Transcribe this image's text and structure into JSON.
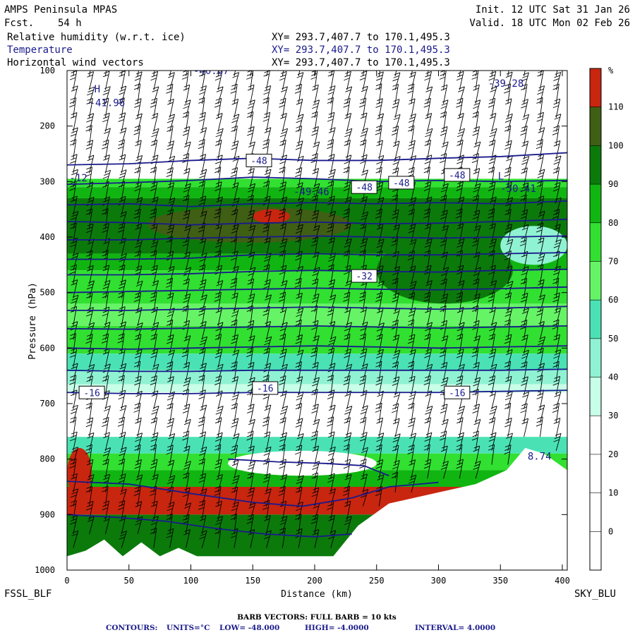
{
  "header": {
    "model": "AMPS Peninsula MPAS",
    "fcst_label": "Fcst.",
    "fcst_value": "54 h",
    "init": "Init. 12 UTC Sat 31 Jan 26",
    "valid": "Valid. 18 UTC Mon 02 Feb 26",
    "fields": [
      {
        "name": "Relative humidity (w.r.t. ice)",
        "xy": "XY= 293.7,407.7 to 170.1,495.3",
        "color": "#000000"
      },
      {
        "name": "Temperature",
        "xy": "XY= 293.7,407.7 to 170.1,495.3",
        "color": "#1a1a8c"
      },
      {
        "name": "Horizontal wind vectors",
        "xy": "XY= 293.7,407.7 to 170.1,495.3",
        "color": "#000000"
      }
    ]
  },
  "footer": {
    "left_station": "FSSL_BLF",
    "right_station": "SKY_BLU",
    "barb_note": "BARB VECTORS:  FULL BARB = 10 kts",
    "contours": {
      "label": "CONTOURS:",
      "units": "UNITS=°C",
      "low": "LOW= -48.000",
      "high": "HIGH= -4.0000",
      "interval": "INTERVAL=   4.0000"
    }
  },
  "chart_data": {
    "type": "heatmap",
    "title": "",
    "xlabel": "Distance (km)",
    "ylabel": "Pressure (hPa)",
    "xlim": [
      0,
      404
    ],
    "ylim": [
      1000,
      100
    ],
    "x_ticks": [
      0,
      50,
      100,
      150,
      200,
      250,
      300,
      350,
      400
    ],
    "y_ticks": [
      100,
      200,
      300,
      400,
      500,
      600,
      700,
      800,
      900,
      1000
    ],
    "colorbar": {
      "unit": "%",
      "levels": [
        0,
        10,
        20,
        30,
        40,
        50,
        60,
        70,
        80,
        90,
        100,
        110
      ],
      "colors": [
        "#ffffff",
        "#ffffff",
        "#ffffff",
        "#ffffff",
        "#c8ffe8",
        "#8ff2d2",
        "#4ae2b4",
        "#66f466",
        "#31e031",
        "#11b511",
        "#0b7a0b",
        "#3f5f14",
        "#c8260f"
      ]
    },
    "rh_bands": [
      {
        "p_top": 295,
        "p_bottom": 310,
        "rh": 70
      },
      {
        "p_top": 310,
        "p_bottom": 330,
        "rh": 80
      },
      {
        "p_top": 330,
        "p_bottom": 430,
        "rh": 90
      },
      {
        "p_top": 430,
        "p_bottom": 460,
        "rh": 80
      },
      {
        "p_top": 460,
        "p_bottom": 520,
        "rh": 70
      },
      {
        "p_top": 520,
        "p_bottom": 560,
        "rh": 60
      },
      {
        "p_top": 560,
        "p_bottom": 610,
        "rh": 70
      },
      {
        "p_top": 610,
        "p_bottom": 640,
        "rh": 50
      },
      {
        "p_top": 640,
        "p_bottom": 665,
        "rh": 40
      },
      {
        "p_top": 665,
        "p_bottom": 680,
        "rh": 30
      },
      {
        "p_top": 760,
        "p_bottom": 790,
        "rh": 50
      },
      {
        "p_top": 790,
        "p_bottom": 820,
        "rh": 70
      },
      {
        "p_top": 820,
        "p_bottom": 850,
        "rh": 80
      },
      {
        "p_top": 850,
        "p_bottom": 900,
        "rh": 110
      },
      {
        "p_top": 900,
        "p_bottom": 975,
        "rh": 90
      }
    ],
    "rh_patches": [
      {
        "x0": 65,
        "x1": 230,
        "p_top": 345,
        "p_bottom": 410,
        "rh": 100
      },
      {
        "x0": 150,
        "x1": 180,
        "p_top": 350,
        "p_bottom": 375,
        "rh": 110
      },
      {
        "x0": 0,
        "x1": 20,
        "p_top": 780,
        "p_bottom": 870,
        "rh": 110
      },
      {
        "x0": 130,
        "x1": 250,
        "p_top": 785,
        "p_bottom": 830,
        "rh": 20
      },
      {
        "x0": 250,
        "x1": 360,
        "p_top": 400,
        "p_bottom": 520,
        "rh": 90
      },
      {
        "x0": 350,
        "x1": 404,
        "p_top": 380,
        "p_bottom": 450,
        "rh": 40
      }
    ],
    "terrain": [
      {
        "x": 0,
        "p": 975
      },
      {
        "x": 15,
        "p": 965
      },
      {
        "x": 30,
        "p": 945
      },
      {
        "x": 45,
        "p": 975
      },
      {
        "x": 60,
        "p": 950
      },
      {
        "x": 75,
        "p": 975
      },
      {
        "x": 90,
        "p": 960
      },
      {
        "x": 105,
        "p": 975
      },
      {
        "x": 125,
        "p": 990
      },
      {
        "x": 175,
        "p": 978
      },
      {
        "x": 215,
        "p": 975
      },
      {
        "x": 235,
        "p": 920
      },
      {
        "x": 260,
        "p": 880
      },
      {
        "x": 300,
        "p": 860
      },
      {
        "x": 330,
        "p": 845
      },
      {
        "x": 355,
        "p": 820
      },
      {
        "x": 370,
        "p": 780
      },
      {
        "x": 385,
        "p": 790
      },
      {
        "x": 404,
        "p": 820
      }
    ],
    "temperature_contours": [
      {
        "points": [
          [
            0,
            270
          ],
          [
            50,
            268
          ],
          [
            100,
            262
          ],
          [
            150,
            258
          ],
          [
            200,
            262
          ],
          [
            250,
            262
          ],
          [
            300,
            258
          ],
          [
            350,
            255
          ],
          [
            404,
            248
          ]
        ]
      },
      {
        "points": [
          [
            0,
            305
          ],
          [
            50,
            302
          ],
          [
            100,
            298
          ],
          [
            150,
            292
          ],
          [
            200,
            295
          ],
          [
            250,
            300
          ],
          [
            300,
            298
          ],
          [
            350,
            300
          ],
          [
            404,
            298
          ]
        ],
        "label": "-48",
        "label_x": 80
      },
      {
        "points": [
          [
            0,
            342
          ],
          [
            50,
            340
          ],
          [
            100,
            345
          ],
          [
            150,
            340
          ],
          [
            200,
            338
          ],
          [
            250,
            340
          ],
          [
            300,
            338
          ],
          [
            350,
            340
          ],
          [
            404,
            335
          ]
        ]
      },
      {
        "points": [
          [
            0,
            372
          ],
          [
            50,
            374
          ],
          [
            100,
            378
          ],
          [
            150,
            375
          ],
          [
            200,
            373
          ],
          [
            250,
            376
          ],
          [
            300,
            375
          ],
          [
            350,
            372
          ],
          [
            404,
            368
          ]
        ]
      },
      {
        "points": [
          [
            0,
            405
          ],
          [
            50,
            405
          ],
          [
            100,
            402
          ],
          [
            150,
            400
          ],
          [
            200,
            398
          ],
          [
            250,
            400
          ],
          [
            300,
            402
          ],
          [
            350,
            400
          ],
          [
            404,
            398
          ]
        ]
      },
      {
        "points": [
          [
            0,
            440
          ],
          [
            50,
            440
          ],
          [
            100,
            438
          ],
          [
            150,
            432
          ],
          [
            200,
            430
          ],
          [
            250,
            432
          ],
          [
            300,
            432
          ],
          [
            350,
            430
          ],
          [
            404,
            428
          ]
        ]
      },
      {
        "points": [
          [
            0,
            468
          ],
          [
            50,
            468
          ],
          [
            100,
            466
          ],
          [
            150,
            462
          ],
          [
            200,
            460
          ],
          [
            250,
            462
          ],
          [
            300,
            463
          ],
          [
            350,
            460
          ],
          [
            404,
            458
          ]
        ],
        "label": "-32",
        "label_x": 80
      },
      {
        "points": [
          [
            0,
            500
          ],
          [
            50,
            498
          ],
          [
            100,
            496
          ],
          [
            150,
            494
          ],
          [
            200,
            492
          ],
          [
            250,
            494
          ],
          [
            300,
            495
          ],
          [
            350,
            493
          ],
          [
            404,
            490
          ]
        ]
      },
      {
        "points": [
          [
            0,
            532
          ],
          [
            50,
            532
          ],
          [
            100,
            530
          ],
          [
            150,
            528
          ],
          [
            200,
            526
          ],
          [
            250,
            528
          ],
          [
            300,
            530
          ],
          [
            350,
            528
          ],
          [
            404,
            525
          ]
        ]
      },
      {
        "points": [
          [
            0,
            565
          ],
          [
            50,
            566
          ],
          [
            100,
            564
          ],
          [
            150,
            562
          ],
          [
            200,
            560
          ],
          [
            250,
            562
          ],
          [
            300,
            564
          ],
          [
            350,
            562
          ],
          [
            404,
            560
          ]
        ]
      },
      {
        "points": [
          [
            0,
            600
          ],
          [
            50,
            602
          ],
          [
            100,
            600
          ],
          [
            150,
            598
          ],
          [
            200,
            596
          ],
          [
            250,
            598
          ],
          [
            300,
            600
          ],
          [
            350,
            598
          ],
          [
            404,
            596
          ]
        ]
      },
      {
        "points": [
          [
            0,
            640
          ],
          [
            50,
            642
          ],
          [
            100,
            642
          ],
          [
            150,
            640
          ],
          [
            200,
            640
          ],
          [
            250,
            640
          ],
          [
            300,
            640
          ],
          [
            350,
            640
          ],
          [
            404,
            638
          ]
        ]
      },
      {
        "points": [
          [
            0,
            680
          ],
          [
            50,
            682
          ],
          [
            100,
            682
          ],
          [
            150,
            680
          ],
          [
            200,
            680
          ],
          [
            250,
            680
          ],
          [
            300,
            680
          ],
          [
            350,
            678
          ],
          [
            404,
            676
          ]
        ],
        "label": "-16",
        "label_x": 80
      },
      {
        "points": [
          [
            130,
            800
          ],
          [
            170,
            805
          ],
          [
            210,
            808
          ],
          [
            240,
            812
          ],
          [
            260,
            830
          ]
        ]
      },
      {
        "points": [
          [
            0,
            840
          ],
          [
            50,
            845
          ],
          [
            100,
            862
          ],
          [
            150,
            878
          ],
          [
            190,
            885
          ],
          [
            230,
            870
          ],
          [
            260,
            850
          ],
          [
            300,
            842
          ]
        ]
      },
      {
        "points": [
          [
            0,
            900
          ],
          [
            40,
            905
          ],
          [
            80,
            912
          ],
          [
            120,
            925
          ],
          [
            160,
            935
          ],
          [
            200,
            940
          ],
          [
            230,
            935
          ]
        ]
      }
    ],
    "contour_labels": [
      {
        "x": 155,
        "p": 262,
        "text": "-48"
      },
      {
        "x": 240,
        "p": 310,
        "text": "-48"
      },
      {
        "x": 270,
        "p": 302,
        "text": "-48"
      },
      {
        "x": 315,
        "p": 288,
        "text": "-48"
      },
      {
        "x": 240,
        "p": 470,
        "text": "-32"
      },
      {
        "x": 20,
        "p": 680,
        "text": "-16"
      },
      {
        "x": 160,
        "p": 672,
        "text": "-16"
      },
      {
        "x": 315,
        "p": 680,
        "text": "-16"
      }
    ],
    "annotations": [
      {
        "x": 102,
        "p": 100,
        "text": "-40.87"
      },
      {
        "x": 22,
        "p": 133,
        "text": "H"
      },
      {
        "x": 18,
        "p": 158,
        "text": "-41.96"
      },
      {
        "x": 340,
        "p": 123,
        "text": "-39.28"
      },
      {
        "x": 2,
        "p": 293,
        "text": "-12"
      },
      {
        "x": 183,
        "p": 318,
        "text": "-49.46"
      },
      {
        "x": 348,
        "p": 290,
        "text": "L"
      },
      {
        "x": 350,
        "p": 312,
        "text": "-50.41"
      },
      {
        "x": 372,
        "p": 795,
        "text": "8.74"
      }
    ],
    "wind_barbs": {
      "x_spacing_km": 13,
      "p_spacing_hpa": 25,
      "typical_speed_kts": 25
    }
  }
}
